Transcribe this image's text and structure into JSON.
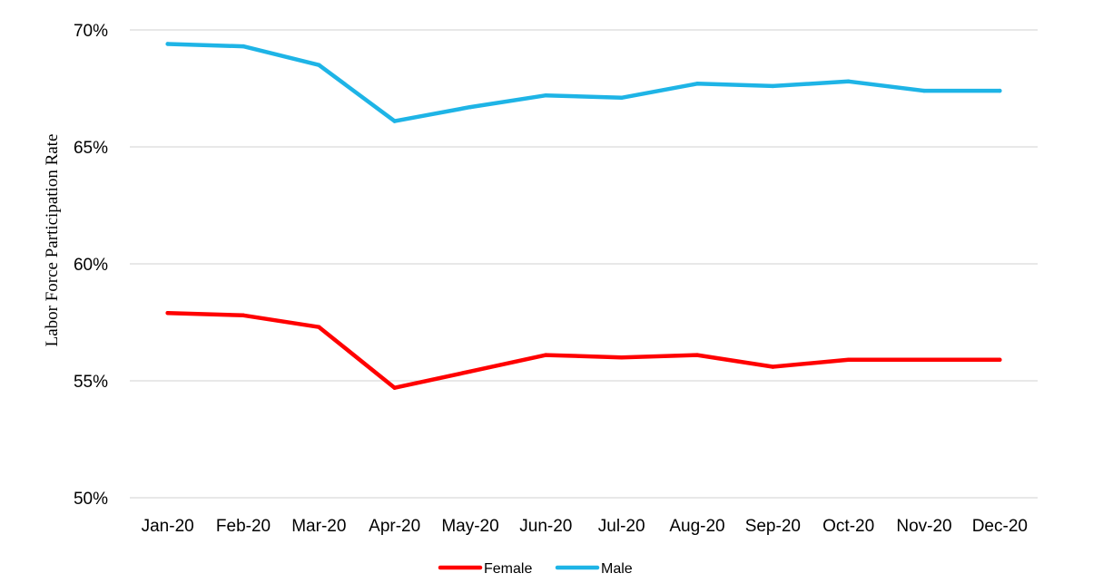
{
  "chart_data": {
    "type": "line",
    "categories": [
      "Jan-20",
      "Feb-20",
      "Mar-20",
      "Apr-20",
      "May-20",
      "Jun-20",
      "Jul-20",
      "Aug-20",
      "Sep-20",
      "Oct-20",
      "Nov-20",
      "Dec-20"
    ],
    "series": [
      {
        "name": "Female",
        "color": "#ff0000",
        "values": [
          57.9,
          57.8,
          57.3,
          54.7,
          55.4,
          56.1,
          56.0,
          56.1,
          55.6,
          55.9,
          55.9,
          55.9
        ]
      },
      {
        "name": "Male",
        "color": "#1eb4e6",
        "values": [
          69.4,
          69.3,
          68.5,
          66.1,
          66.7,
          67.2,
          67.1,
          67.7,
          67.6,
          67.8,
          67.4,
          67.4
        ]
      }
    ],
    "ylabel": "Labor Force Participation Rate",
    "ylim": [
      50,
      70
    ],
    "yticks": [
      50,
      55,
      60,
      65,
      70
    ],
    "ytick_labels": [
      "50%",
      "55%",
      "60%",
      "65%",
      "70%"
    ],
    "grid": true,
    "legend_position": "bottom-center"
  }
}
